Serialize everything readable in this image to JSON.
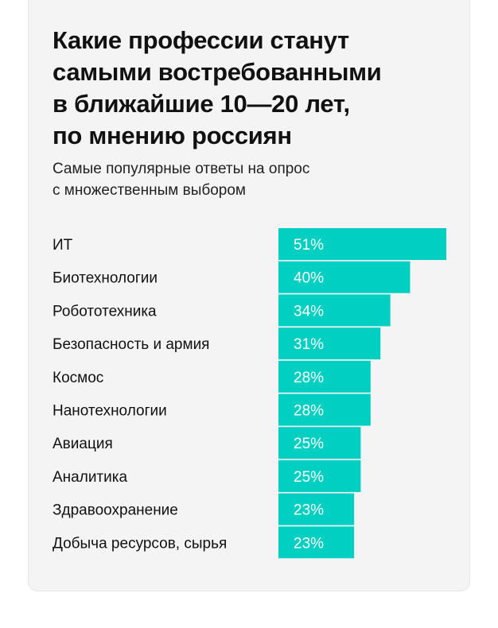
{
  "colors": {
    "bar": "#00cfc1",
    "background": "#f4f4f4"
  },
  "chart_data": {
    "type": "bar",
    "orientation": "horizontal",
    "title": "Какие профессии станут\nсамыми востребованными\nв ближайшие 10—20 лет,\nпо мнению россиян",
    "subtitle": "Самые популярные ответы на опрос\nс множественным выбором",
    "categories": [
      "ИТ",
      "Биотехнологии",
      "Робототехника",
      "Безопасность и армия",
      "Космос",
      "Нанотехнологии",
      "Авиация",
      "Аналитика",
      "Здравоохранение",
      "Добыча ресурсов, сырья"
    ],
    "values": [
      51,
      40,
      34,
      31,
      28,
      28,
      25,
      25,
      23,
      23
    ],
    "value_labels": [
      "51%",
      "40%",
      "34%",
      "31%",
      "28%",
      "28%",
      "25%",
      "25%",
      "23%",
      "23%"
    ],
    "xlim": [
      0,
      51
    ],
    "unit": "%",
    "grid": false,
    "legend": "none"
  }
}
